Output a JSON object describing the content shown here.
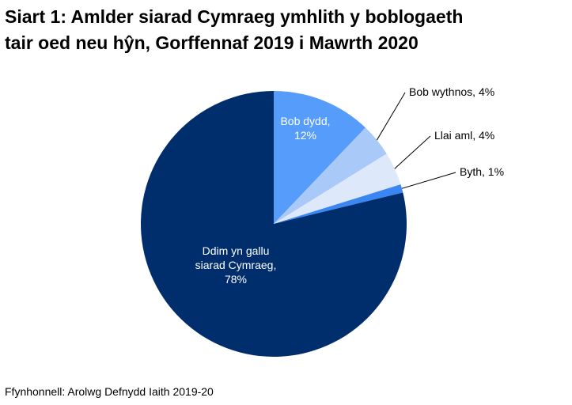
{
  "chart_data": {
    "type": "pie",
    "title": [
      "Siart 1: Amlder siarad Cymraeg ymhlith y boblogaeth",
      "tair oed neu hŷn, Gorffennaf 2019 i Mawrth 2020"
    ],
    "categories": [
      "Bob dydd",
      "Bob wythnos",
      "Llai aml",
      "Byth",
      "Ddim yn gallu siarad Cymraeg"
    ],
    "values": [
      12,
      4,
      4,
      1,
      78
    ],
    "value_labels": [
      [
        "Bob dydd,",
        "12%"
      ],
      [
        "Bob wythnos, 4%"
      ],
      [
        "Llai aml, 4%"
      ],
      [
        "Byth, 1%"
      ],
      [
        "Ddim yn gallu",
        "siarad Cymraeg,",
        "78%"
      ]
    ],
    "colors": [
      "#559cfb",
      "#a9c9f9",
      "#dde9fb",
      "#3a86f2",
      "#002e6c"
    ],
    "source": "Ffynhonnell: Arolwg Defnydd Iaith 2019-20"
  }
}
